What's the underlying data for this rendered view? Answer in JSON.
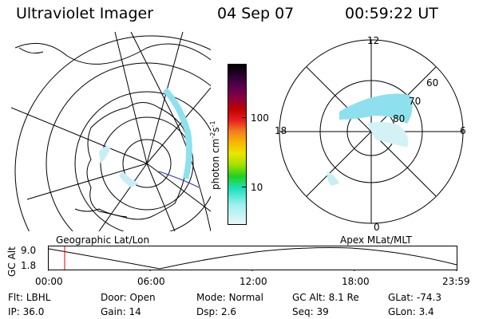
{
  "header": {
    "instrument": "Ultraviolet Imager",
    "date": "04 Sep 07",
    "time": "00:59:22 UT"
  },
  "colorbar": {
    "label_main": "photon cm",
    "label_sup1": "-2",
    "label_mid": "s",
    "label_sup2": "-1",
    "ticks": [
      "100",
      "10"
    ],
    "colors": [
      "#000000",
      "#2b0030",
      "#5a0050",
      "#8a0040",
      "#c00000",
      "#e82020",
      "#f08020",
      "#f8b800",
      "#e8e800",
      "#a0e000",
      "#20d020",
      "#20e0c0",
      "#a0f0f0",
      "#e8f8f8"
    ]
  },
  "polar_plot": {
    "labels": [
      "12",
      "60",
      "70",
      "80",
      "18",
      "6",
      "0"
    ],
    "aurora_color": "#8ee0ee"
  },
  "labels": {
    "geographic": "Geographic Lat/Lon",
    "apex": "Apex MLat/MLT"
  },
  "timeline": {
    "ylabel": "GC Alt",
    "yticks": [
      "9.0",
      "1.8"
    ],
    "xticks": [
      "00:00",
      "06:00",
      "12:00",
      "18:00",
      "23:59"
    ],
    "marker_color": "#e00000"
  },
  "status": {
    "filter_label": "Flt:",
    "filter_value": "LBHL",
    "door_label": "Door:",
    "door_value": "Open",
    "mode_label": "Mode:",
    "mode_value": "Normal",
    "gcalt_label": "GC Alt:",
    "gcalt_value": "8.1 Re",
    "glat_label": "GLat:",
    "glat_value": "-74.3",
    "ip_label": "IP:",
    "ip_value": "36.0",
    "gain_label": "Gain:",
    "gain_value": "14",
    "dsp_label": "Dsp:",
    "dsp_value": "2.6",
    "seq_label": "Seq:",
    "seq_value": "39",
    "glon_label": "GLon:",
    "glon_value": "3.4"
  }
}
